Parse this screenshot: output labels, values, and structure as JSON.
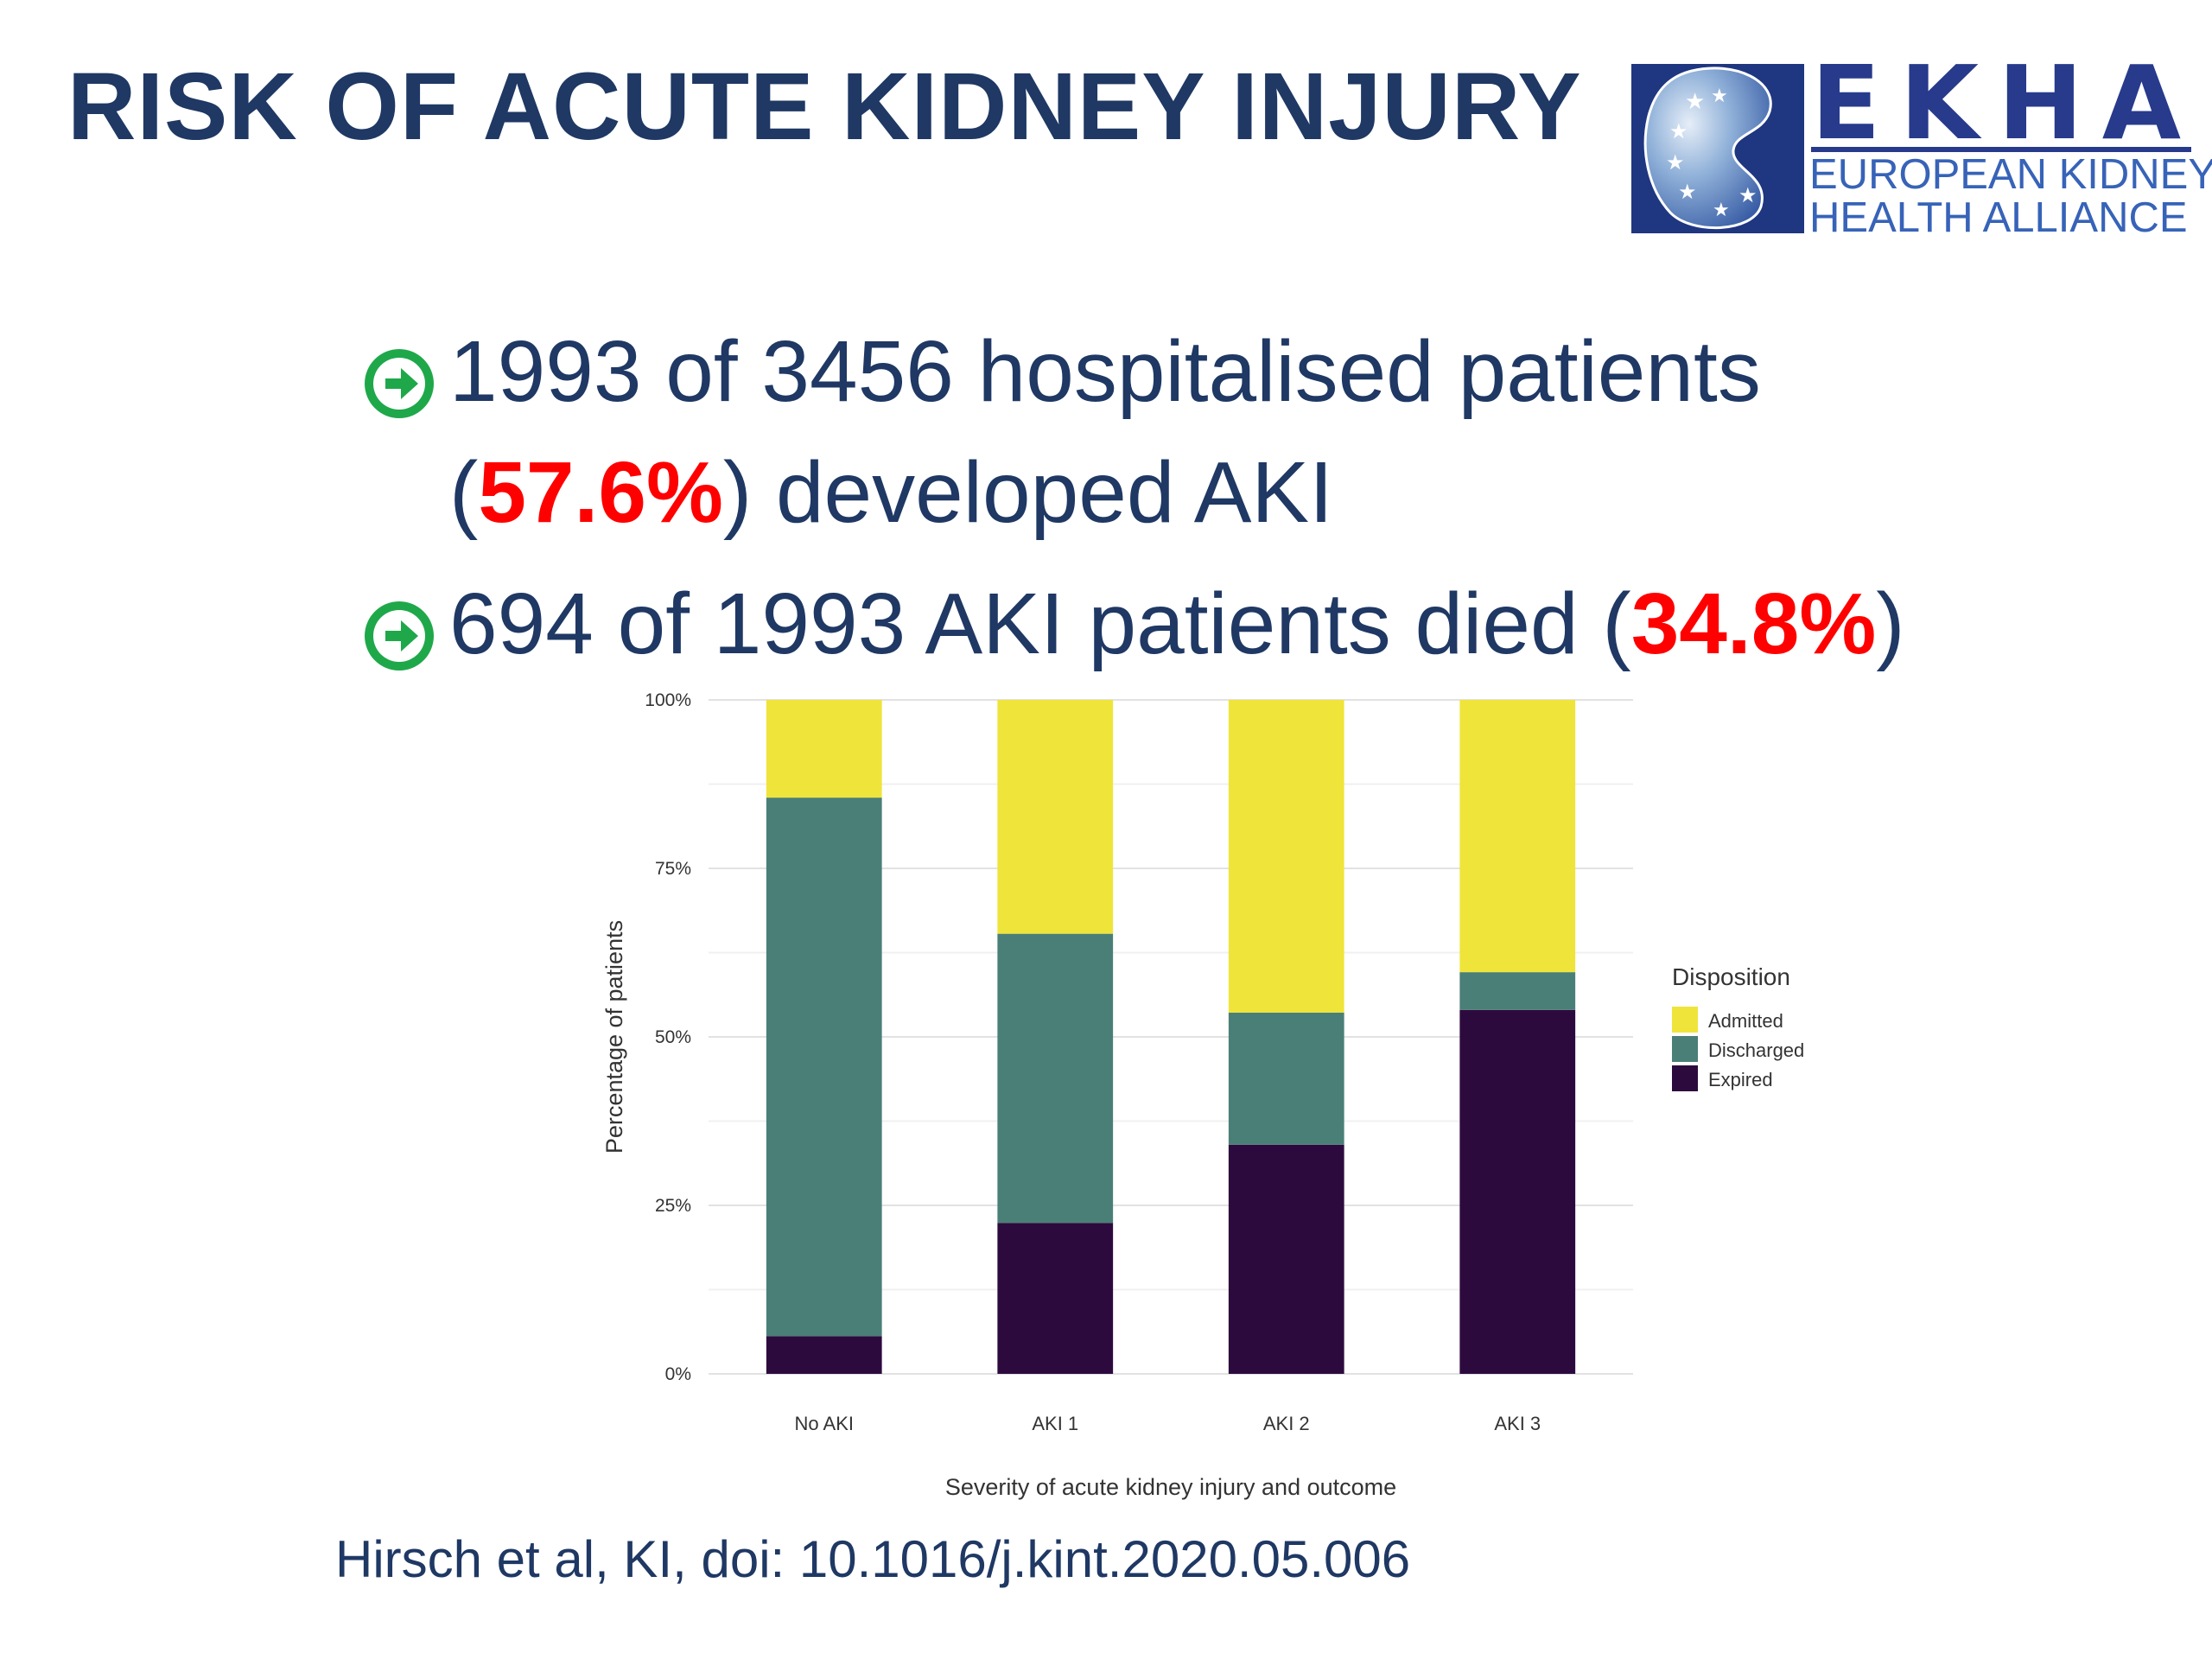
{
  "slide": {
    "title": "RISK OF ACUTE KIDNEY INJURY",
    "logo": {
      "acronym": "EKHA",
      "line1": "EUROPEAN KIDNEY",
      "line2": "HEALTH ALLIANCE",
      "brand_color": "#273a8c"
    },
    "bullets": [
      {
        "pre": "1993 of 3456 hospitalised patients (",
        "highlight": "57.6%",
        "post": ") developed AKI"
      },
      {
        "pre": "694 of 1993 AKI patients died (",
        "highlight": "34.8%",
        "post": ")"
      }
    ],
    "bullet_icon": "arrow-right-circle-icon",
    "highlight_color": "#ff0000",
    "text_color": "#1f3864",
    "citation": "Hirsch et al, KI, doi: 10.1016/j.kint.2020.05.006"
  },
  "chart_data": {
    "type": "bar",
    "stacked": true,
    "categories": [
      "No AKI",
      "AKI 1",
      "AKI 2",
      "AKI 3"
    ],
    "series": [
      {
        "name": "Expired",
        "color": "#2d0a3e",
        "values": [
          5.6,
          22.4,
          34.0,
          54.0
        ]
      },
      {
        "name": "Discharged",
        "color": "#4a7f77",
        "values": [
          79.9,
          42.9,
          19.6,
          5.6
        ]
      },
      {
        "name": "Admitted",
        "color": "#efe43a",
        "values": [
          14.5,
          34.7,
          46.4,
          40.4
        ]
      }
    ],
    "legend_order": [
      "Admitted",
      "Discharged",
      "Expired"
    ],
    "legend_title": "Disposition",
    "legend_position": "right",
    "xlabel": "Severity of acute kidney injury and outcome",
    "ylabel": "Percentage of patients",
    "ylim": [
      0,
      100
    ],
    "yticks": [
      "0%",
      "25%",
      "50%",
      "75%",
      "100%"
    ],
    "grid": true
  }
}
